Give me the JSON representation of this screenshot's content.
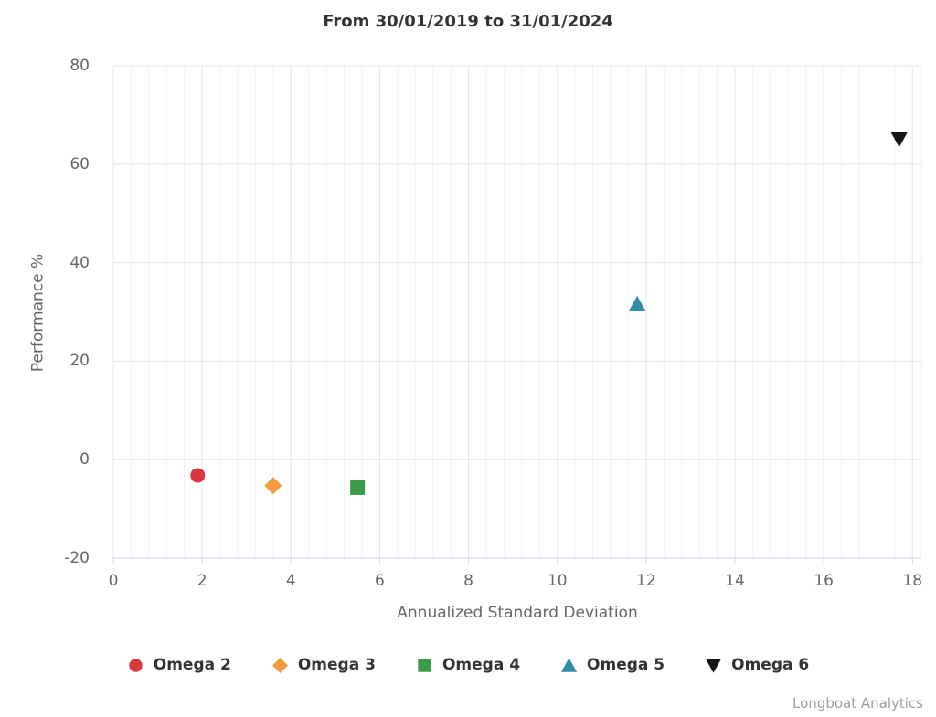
{
  "title": "From 30/01/2019 to 31/01/2024",
  "credits": "Longboat Analytics",
  "chart_data": {
    "type": "scatter",
    "title": "From 30/01/2019 to 31/01/2024",
    "xlabel": "Annualized Standard Deviation",
    "ylabel": "Performance %",
    "xlim": [
      0,
      18.2
    ],
    "ylim": [
      -20,
      80
    ],
    "x_ticks": [
      0,
      2,
      4,
      6,
      8,
      10,
      12,
      14,
      16,
      18
    ],
    "y_ticks": [
      -20,
      0,
      20,
      40,
      60,
      80
    ],
    "x_minor_tick_interval": 0.4,
    "grid": true,
    "legend_position": "bottom",
    "grid_color_major": "#e6e6e6",
    "grid_color_minor": "#f2f2f2",
    "axis_line_color": "#ccd6eb",
    "series": [
      {
        "name": "Omega 2",
        "marker": "circle",
        "color": "#d8373f",
        "points": [
          {
            "x": 1.9,
            "y": -3.2
          }
        ]
      },
      {
        "name": "Omega 3",
        "marker": "diamond",
        "color": "#f29b41",
        "points": [
          {
            "x": 3.6,
            "y": -5.3
          }
        ]
      },
      {
        "name": "Omega 4",
        "marker": "square",
        "color": "#3b9a4a",
        "points": [
          {
            "x": 5.5,
            "y": -5.7
          }
        ]
      },
      {
        "name": "Omega 5",
        "marker": "triangle-up",
        "color": "#2e8ca8",
        "points": [
          {
            "x": 11.8,
            "y": 31.6
          }
        ]
      },
      {
        "name": "Omega 6",
        "marker": "triangle-down",
        "color": "#151515",
        "points": [
          {
            "x": 17.7,
            "y": 65.1
          }
        ]
      }
    ]
  }
}
